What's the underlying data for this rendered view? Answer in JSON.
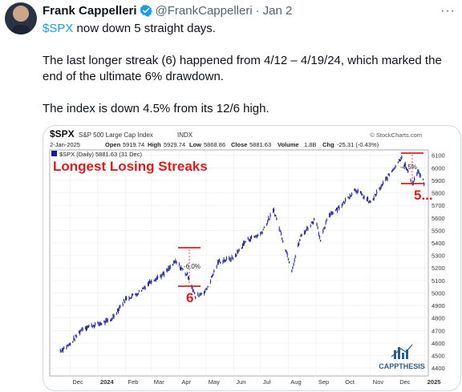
{
  "author": {
    "name": "Frank Cappelleri",
    "handle": "@FrankCappelleri",
    "separator": "·",
    "date": "Jan 2",
    "more_icon": "···"
  },
  "tweet": {
    "cashtag": "$SPX",
    "line1_rest": " now down 5 straight days.",
    "para2": "The last longer streak (6) happened from 4/12 – 4/19/24, which marked the end of the ultimate 6% drawdown.",
    "para3": "The index is down 4.5% from its 12/6 high."
  },
  "chart": {
    "symbol": "$SPX",
    "index_name": "S&P 500 Large Cap Index",
    "exchange": "INDX",
    "source": "© StockCharts.com",
    "date": "2-Jan-2025",
    "open_label": "Open",
    "open": "5919.74",
    "high_label": "High",
    "high": "5929.74",
    "low_label": "Low",
    "low": "5868.86",
    "close_label": "Close",
    "close": "5881.63",
    "volume_label": "Volume",
    "volume": "1.8B",
    "chg_label": "Chg",
    "chg": "-25.31 (-0.43%)",
    "legend": "$SPX (Daily) 5881.63 (31 Dec)",
    "title_annotation": "Longest Losing Streaks",
    "drawdown_1": "-6.0%",
    "streak_1": "6",
    "drawdown_2": "-4.5%",
    "streak_2": "5...",
    "watermark": "CAPPTHESIS",
    "y_ticks": [
      "6100",
      "6000",
      "5900",
      "5800",
      "5700",
      "5600",
      "5500",
      "5400",
      "5300",
      "5200",
      "5100",
      "5000",
      "4900",
      "4800",
      "4700",
      "4600",
      "4500",
      "4400"
    ],
    "x_ticks": [
      "Dec",
      "2024",
      "Feb",
      "Mar",
      "Apr",
      "May",
      "Jun",
      "Jul",
      "Aug",
      "Sep",
      "Oct",
      "Nov",
      "Dec",
      "2025"
    ]
  },
  "chart_data": {
    "type": "line",
    "title": "$SPX S&P 500 Large Cap Index INDX",
    "ylim": [
      4350,
      6130
    ],
    "x": [
      "2023-11-20",
      "2023-12-01",
      "2023-12-15",
      "2024-01-01",
      "2024-01-15",
      "2024-02-01",
      "2024-02-15",
      "2024-03-01",
      "2024-03-15",
      "2024-03-28",
      "2024-04-12",
      "2024-04-19",
      "2024-05-01",
      "2024-05-15",
      "2024-06-01",
      "2024-06-15",
      "2024-07-01",
      "2024-07-16",
      "2024-08-05",
      "2024-08-15",
      "2024-09-01",
      "2024-09-06",
      "2024-09-15",
      "2024-10-01",
      "2024-10-15",
      "2024-11-01",
      "2024-11-15",
      "2024-12-06",
      "2024-12-18",
      "2024-12-24",
      "2024-12-31"
    ],
    "values": [
      4540,
      4590,
      4720,
      4750,
      4780,
      4950,
      5000,
      5100,
      5150,
      5250,
      5125,
      4967,
      5020,
      5250,
      5280,
      5420,
      5470,
      5660,
      5186,
      5450,
      5600,
      5410,
      5620,
      5710,
      5830,
      5720,
      5870,
      6090,
      5870,
      5970,
      5881
    ],
    "series": [
      {
        "name": "$SPX (Daily)",
        "values": [
          4540,
          4590,
          4720,
          4750,
          4780,
          4950,
          5000,
          5100,
          5150,
          5250,
          5125,
          4967,
          5020,
          5250,
          5280,
          5420,
          5470,
          5660,
          5186,
          5450,
          5600,
          5410,
          5620,
          5710,
          5830,
          5720,
          5870,
          6090,
          5870,
          5970,
          5881
        ]
      }
    ]
  },
  "colors": {
    "accent": "#1d9bf0",
    "text": "#0f1419",
    "muted": "#536471",
    "price": "#1a1a8c",
    "annotation": "#d62020",
    "watermark": "#2d5d8c"
  }
}
